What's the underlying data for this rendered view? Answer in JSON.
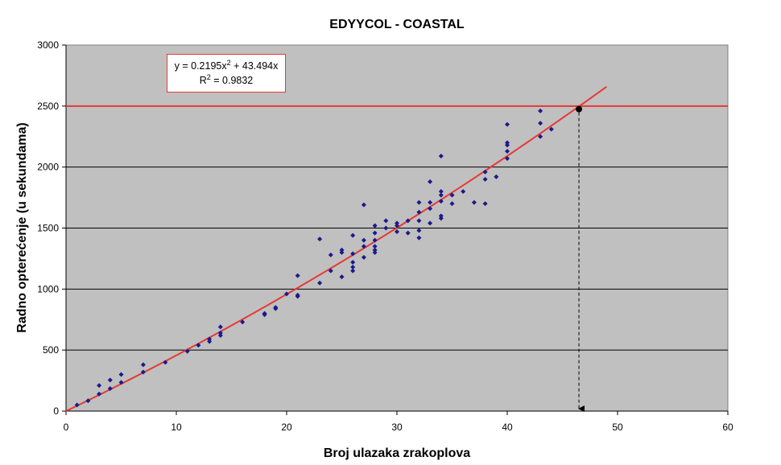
{
  "chart_data": {
    "type": "scatter",
    "title": "EDYYCOL - COASTAL",
    "xlabel": "Broj ulazaka zrakoplova",
    "ylabel": "Radno opterećenje (u sekundama)",
    "xlim": [
      0,
      60
    ],
    "ylim": [
      0,
      3000
    ],
    "xticks": [
      "0",
      "10",
      "20",
      "30",
      "40",
      "50",
      "60"
    ],
    "yticks": [
      "0",
      "500",
      "1000",
      "1500",
      "2000",
      "2500",
      "3000"
    ],
    "grid": "horizontal",
    "colors": {
      "plot_background": "#c0c0c0",
      "points": "#1a1a8c",
      "trendline": "#e53935",
      "threshold": "#e53935",
      "gridlines": "#000000"
    },
    "points": [
      [
        1,
        50
      ],
      [
        2,
        85
      ],
      [
        3,
        140
      ],
      [
        3,
        210
      ],
      [
        4,
        185
      ],
      [
        4,
        255
      ],
      [
        5,
        235
      ],
      [
        5,
        300
      ],
      [
        7,
        320
      ],
      [
        7,
        380
      ],
      [
        9,
        400
      ],
      [
        11,
        490
      ],
      [
        12,
        540
      ],
      [
        13,
        570
      ],
      [
        13,
        590
      ],
      [
        14,
        620
      ],
      [
        14,
        640
      ],
      [
        14,
        690
      ],
      [
        16,
        730
      ],
      [
        18,
        790
      ],
      [
        18,
        800
      ],
      [
        19,
        840
      ],
      [
        19,
        850
      ],
      [
        20,
        960
      ],
      [
        21,
        940
      ],
      [
        21,
        950
      ],
      [
        21,
        1110
      ],
      [
        23,
        1050
      ],
      [
        23,
        1410
      ],
      [
        24,
        1150
      ],
      [
        24,
        1280
      ],
      [
        25,
        1100
      ],
      [
        25,
        1300
      ],
      [
        25,
        1320
      ],
      [
        26,
        1150
      ],
      [
        26,
        1180
      ],
      [
        26,
        1220
      ],
      [
        26,
        1290
      ],
      [
        26,
        1440
      ],
      [
        27,
        1260
      ],
      [
        27,
        1350
      ],
      [
        27,
        1400
      ],
      [
        27,
        1690
      ],
      [
        28,
        1300
      ],
      [
        28,
        1320
      ],
      [
        28,
        1350
      ],
      [
        28,
        1400
      ],
      [
        28,
        1460
      ],
      [
        28,
        1520
      ],
      [
        29,
        1500
      ],
      [
        29,
        1560
      ],
      [
        30,
        1470
      ],
      [
        30,
        1520
      ],
      [
        30,
        1540
      ],
      [
        31,
        1460
      ],
      [
        31,
        1560
      ],
      [
        32,
        1420
      ],
      [
        32,
        1480
      ],
      [
        32,
        1560
      ],
      [
        32,
        1630
      ],
      [
        32,
        1710
      ],
      [
        33,
        1540
      ],
      [
        33,
        1660
      ],
      [
        33,
        1710
      ],
      [
        33,
        1880
      ],
      [
        34,
        1580
      ],
      [
        34,
        1600
      ],
      [
        34,
        1720
      ],
      [
        34,
        1770
      ],
      [
        34,
        1800
      ],
      [
        34,
        2090
      ],
      [
        35,
        1700
      ],
      [
        35,
        1770
      ],
      [
        36,
        1800
      ],
      [
        37,
        1710
      ],
      [
        38,
        1700
      ],
      [
        38,
        1900
      ],
      [
        38,
        1960
      ],
      [
        39,
        1920
      ],
      [
        40,
        2070
      ],
      [
        40,
        2130
      ],
      [
        40,
        2180
      ],
      [
        40,
        2200
      ],
      [
        40,
        2350
      ],
      [
        43,
        2250
      ],
      [
        43,
        2360
      ],
      [
        43,
        2460
      ],
      [
        44,
        2310
      ]
    ],
    "trendline": {
      "type": "polynomial",
      "a": 0.2195,
      "b": 43.494,
      "x_range": [
        0,
        49
      ]
    },
    "equation": {
      "lead": "y = 0.2195x",
      "exp": "2",
      "tail": " + 43.494x"
    },
    "r_squared": {
      "lead": "R",
      "exp": "2",
      "tail": " = 0.9832"
    },
    "threshold_y": 2500,
    "marker": {
      "x": 46.5,
      "y": 2475
    }
  }
}
